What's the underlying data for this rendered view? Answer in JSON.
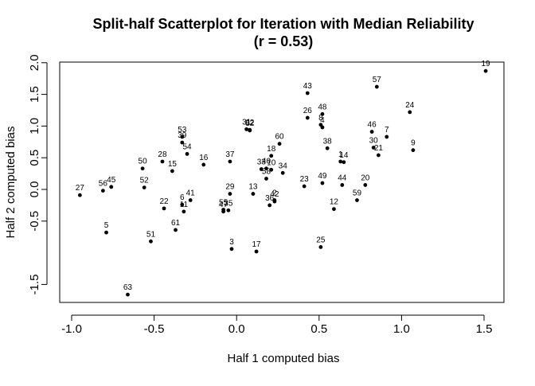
{
  "chart_data": {
    "type": "scatter",
    "title": "Split-half Scatterplot for Iteration with Median Reliability",
    "subtitle": "(r = 0.53)",
    "xlabel": "Half 1 computed bias",
    "ylabel": "Half 2 computed bias",
    "xlim": [
      -1.0,
      1.5
    ],
    "ylim": [
      -1.7,
      2.0
    ],
    "xticks": [
      -1.0,
      -0.5,
      0.0,
      0.5,
      1.0,
      1.5
    ],
    "xtick_labels": [
      "-1.0",
      "-0.5",
      "0.0",
      "0.5",
      "1.0",
      "1.5"
    ],
    "yticks": [
      -1.5,
      -0.5,
      0.0,
      0.5,
      1.0,
      1.5,
      2.0
    ],
    "ytick_labels": [
      "-1.5",
      "-0.5",
      "0.0",
      "0.5",
      "1.0",
      "1.5",
      "2.0"
    ],
    "points": [
      {
        "label": "1",
        "x": 0.63,
        "y": 0.44
      },
      {
        "label": "2",
        "x": 0.23,
        "y": -0.17
      },
      {
        "label": "3",
        "x": -0.03,
        "y": -0.94
      },
      {
        "label": "4",
        "x": 0.52,
        "y": 0.98
      },
      {
        "label": "5",
        "x": -0.79,
        "y": -0.68
      },
      {
        "label": "6",
        "x": -0.33,
        "y": -0.24
      },
      {
        "label": "7",
        "x": 0.91,
        "y": 0.83
      },
      {
        "label": "8",
        "x": 0.51,
        "y": 1.02
      },
      {
        "label": "9",
        "x": 1.07,
        "y": 0.62
      },
      {
        "label": "10",
        "x": 0.21,
        "y": 0.31
      },
      {
        "label": "11",
        "x": -0.32,
        "y": -0.35
      },
      {
        "label": "12",
        "x": 0.59,
        "y": -0.31
      },
      {
        "label": "13",
        "x": 0.1,
        "y": -0.07
      },
      {
        "label": "14",
        "x": 0.65,
        "y": 0.43
      },
      {
        "label": "15",
        "x": -0.39,
        "y": 0.29
      },
      {
        "label": "16",
        "x": -0.2,
        "y": 0.39
      },
      {
        "label": "17",
        "x": 0.12,
        "y": -0.98
      },
      {
        "label": "18",
        "x": 0.21,
        "y": 0.53
      },
      {
        "label": "19",
        "x": 1.51,
        "y": 1.87
      },
      {
        "label": "20",
        "x": 0.78,
        "y": 0.07
      },
      {
        "label": "21",
        "x": 0.86,
        "y": 0.54
      },
      {
        "label": "22",
        "x": -0.44,
        "y": -0.3
      },
      {
        "label": "23",
        "x": 0.41,
        "y": 0.05
      },
      {
        "label": "24",
        "x": 1.05,
        "y": 1.22
      },
      {
        "label": "25",
        "x": 0.51,
        "y": -0.91
      },
      {
        "label": "26",
        "x": 0.43,
        "y": 1.13
      },
      {
        "label": "27",
        "x": -0.95,
        "y": -0.09
      },
      {
        "label": "28",
        "x": -0.45,
        "y": 0.44
      },
      {
        "label": "29",
        "x": -0.04,
        "y": -0.07
      },
      {
        "label": "30",
        "x": 0.83,
        "y": 0.66
      },
      {
        "label": "31",
        "x": 0.06,
        "y": 0.95
      },
      {
        "label": "32",
        "x": 0.08,
        "y": 0.93
      },
      {
        "label": "33",
        "x": 0.15,
        "y": 0.32
      },
      {
        "label": "34",
        "x": 0.28,
        "y": 0.26
      },
      {
        "label": "35",
        "x": -0.05,
        "y": -0.33
      },
      {
        "label": "36",
        "x": 0.2,
        "y": -0.25
      },
      {
        "label": "37",
        "x": -0.04,
        "y": 0.44
      },
      {
        "label": "38",
        "x": 0.55,
        "y": 0.65
      },
      {
        "label": "39",
        "x": -0.33,
        "y": 0.74
      },
      {
        "label": "40",
        "x": 0.18,
        "y": 0.33
      },
      {
        "label": "41",
        "x": -0.28,
        "y": -0.17
      },
      {
        "label": "42",
        "x": 0.23,
        "y": -0.19
      },
      {
        "label": "43",
        "x": 0.43,
        "y": 1.52
      },
      {
        "label": "44",
        "x": 0.64,
        "y": 0.07
      },
      {
        "label": "45",
        "x": -0.76,
        "y": 0.04
      },
      {
        "label": "46",
        "x": 0.82,
        "y": 0.91
      },
      {
        "label": "47",
        "x": -0.08,
        "y": -0.35
      },
      {
        "label": "48",
        "x": 0.52,
        "y": 1.19
      },
      {
        "label": "49",
        "x": 0.52,
        "y": 0.1
      },
      {
        "label": "50",
        "x": -0.57,
        "y": 0.33
      },
      {
        "label": "51",
        "x": -0.52,
        "y": -0.82
      },
      {
        "label": "52",
        "x": -0.56,
        "y": 0.03
      },
      {
        "label": "53",
        "x": -0.33,
        "y": 0.83
      },
      {
        "label": "54",
        "x": -0.3,
        "y": 0.56
      },
      {
        "label": "55",
        "x": -0.08,
        "y": -0.32
      },
      {
        "label": "56",
        "x": -0.81,
        "y": -0.02
      },
      {
        "label": "57",
        "x": 0.85,
        "y": 1.62
      },
      {
        "label": "58",
        "x": 0.18,
        "y": 0.17
      },
      {
        "label": "59",
        "x": 0.73,
        "y": -0.17
      },
      {
        "label": "60",
        "x": 0.26,
        "y": 0.72
      },
      {
        "label": "61",
        "x": -0.37,
        "y": -0.64
      },
      {
        "label": "62",
        "x": 0.08,
        "y": 0.94
      },
      {
        "label": "63",
        "x": -0.66,
        "y": -1.66
      }
    ]
  }
}
